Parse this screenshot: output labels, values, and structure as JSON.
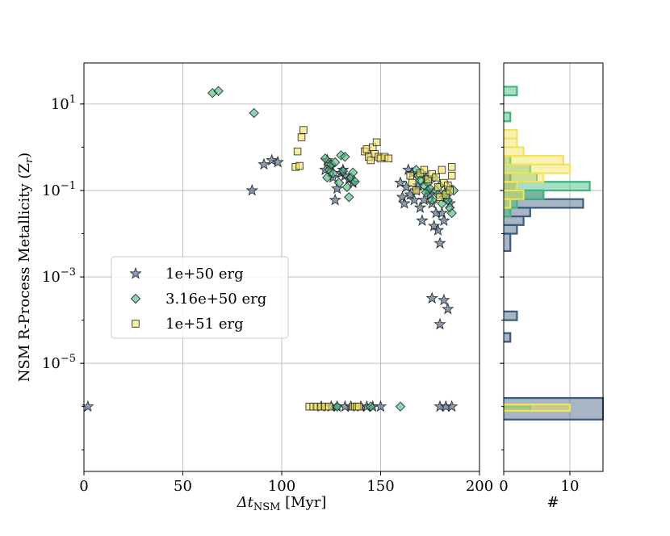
{
  "chart_data": [
    {
      "type": "scatter",
      "xlabel_main": "Δt",
      "xlabel_sub": "NSM",
      "xlabel_unit": " [Myr]",
      "ylabel_main": "NSM R-Process Metallicity (Z",
      "ylabel_sub": "r",
      "ylabel_end": ")",
      "xlim": [
        0,
        200
      ],
      "ylim_log10": [
        -7.5,
        1.95
      ],
      "yscale": "log",
      "grid": true,
      "legend_position": "center-left",
      "x_ticks": [
        0,
        50,
        100,
        150,
        200
      ],
      "y_ticks": [
        {
          "exp": 1,
          "label": "10",
          "sup": "1"
        },
        {
          "exp": -1,
          "label": "10",
          "sup": "−1"
        },
        {
          "exp": -3,
          "label": "10",
          "sup": "−3"
        },
        {
          "exp": -5,
          "label": "10",
          "sup": "−5"
        }
      ],
      "series": [
        {
          "name": "1e+50 erg",
          "marker": "star",
          "color": "#3b5b7e",
          "points": [
            [
              2,
              1e-06
            ],
            [
              85,
              0.1
            ],
            [
              91,
              0.4
            ],
            [
              95,
              0.5
            ],
            [
              98,
              0.45
            ],
            [
              122,
              0.3
            ],
            [
              123,
              0.5
            ],
            [
              125,
              0.35
            ],
            [
              126,
              0.2
            ],
            [
              127,
              0.06
            ],
            [
              128,
              0.11
            ],
            [
              130,
              0.25
            ],
            [
              131,
              0.3
            ],
            [
              132,
              0.22
            ],
            [
              134,
              0.18
            ],
            [
              136,
              0.15
            ],
            [
              120,
              1e-06
            ],
            [
              125,
              1e-06
            ],
            [
              128,
              1e-06
            ],
            [
              132,
              1e-06
            ],
            [
              135,
              1e-06
            ],
            [
              140,
              1e-06
            ],
            [
              143,
              1e-06
            ],
            [
              146,
              1e-06
            ],
            [
              150,
              1e-06
            ],
            [
              160,
              0.15
            ],
            [
              161,
              0.07
            ],
            [
              162,
              0.05
            ],
            [
              163,
              0.12
            ],
            [
              164,
              0.3
            ],
            [
              165,
              0.08
            ],
            [
              166,
              0.25
            ],
            [
              167,
              0.06
            ],
            [
              168,
              0.1
            ],
            [
              169,
              0.13
            ],
            [
              170,
              0.04
            ],
            [
              171,
              0.02
            ],
            [
              172,
              0.06
            ],
            [
              173,
              0.2
            ],
            [
              174,
              0.1
            ],
            [
              175,
              0.08
            ],
            [
              176,
              0.05
            ],
            [
              177,
              0.015
            ],
            [
              178,
              0.03
            ],
            [
              179,
              0.012
            ],
            [
              180,
              0.006
            ],
            [
              181,
              0.03
            ],
            [
              182,
              0.02
            ],
            [
              183,
              0.07
            ],
            [
              184,
              0.12
            ],
            [
              185,
              0.05
            ],
            [
              176,
              0.00032
            ],
            [
              180,
              8e-05
            ],
            [
              182,
              0.00029
            ],
            [
              184,
              0.00018
            ],
            [
              180,
              1e-06
            ],
            [
              183,
              1e-06
            ],
            [
              186,
              1e-06
            ]
          ]
        },
        {
          "name": "3.16e+50 erg",
          "marker": "diamond",
          "color": "#3fb57a",
          "points": [
            [
              65,
              18
            ],
            [
              68,
              20
            ],
            [
              86,
              6.2
            ],
            [
              122,
              0.55
            ],
            [
              123,
              0.2
            ],
            [
              124,
              0.3
            ],
            [
              125,
              0.4
            ],
            [
              126,
              0.25
            ],
            [
              127,
              0.45
            ],
            [
              129,
              0.15
            ],
            [
              130,
              0.65
            ],
            [
              131,
              0.28
            ],
            [
              132,
              0.6
            ],
            [
              133,
              0.12
            ],
            [
              134,
              0.07
            ],
            [
              135,
              0.2
            ],
            [
              136,
              0.26
            ],
            [
              137,
              0.16
            ],
            [
              168,
              0.3
            ],
            [
              169,
              0.22
            ],
            [
              170,
              0.17
            ],
            [
              171,
              0.25
            ],
            [
              172,
              0.13
            ],
            [
              173,
              0.09
            ],
            [
              174,
              0.15
            ],
            [
              175,
              0.11
            ],
            [
              176,
              0.06
            ],
            [
              177,
              0.2
            ],
            [
              178,
              0.1
            ],
            [
              179,
              0.08
            ],
            [
              180,
              0.13
            ],
            [
              181,
              0.05
            ],
            [
              182,
              0.07
            ],
            [
              183,
              0.09
            ],
            [
              184,
              0.06
            ],
            [
              185,
              0.04
            ],
            [
              186,
              0.03
            ],
            [
              187,
              0.1
            ],
            [
              128,
              1e-06
            ],
            [
              145,
              1e-06
            ],
            [
              160,
              1e-06
            ]
          ]
        },
        {
          "name": "1e+51 erg",
          "marker": "square",
          "color": "#f2e35a",
          "points": [
            [
              107,
              0.35
            ],
            [
              108,
              0.8
            ],
            [
              109,
              0.37
            ],
            [
              110,
              1.7
            ],
            [
              111,
              2.5
            ],
            [
              142,
              0.8
            ],
            [
              143,
              0.9
            ],
            [
              144,
              0.6
            ],
            [
              145,
              0.5
            ],
            [
              146,
              1.0
            ],
            [
              147,
              0.7
            ],
            [
              148,
              1.3
            ],
            [
              149,
              0.6
            ],
            [
              150,
              0.55
            ],
            [
              152,
              0.6
            ],
            [
              154,
              0.55
            ],
            [
              165,
              0.22
            ],
            [
              166,
              0.15
            ],
            [
              168,
              0.1
            ],
            [
              170,
              0.25
            ],
            [
              172,
              0.3
            ],
            [
              174,
              0.18
            ],
            [
              176,
              0.24
            ],
            [
              178,
              0.2
            ],
            [
              179,
              0.12
            ],
            [
              180,
              0.07
            ],
            [
              181,
              0.3
            ],
            [
              182,
              0.15
            ],
            [
              183,
              0.08
            ],
            [
              184,
              0.13
            ],
            [
              185,
              0.1
            ],
            [
              186,
              0.35
            ],
            [
              186,
              0.22
            ],
            [
              114,
              1e-06
            ],
            [
              116,
              1e-06
            ],
            [
              118,
              1e-06
            ],
            [
              120,
              1e-06
            ],
            [
              122,
              1e-06
            ],
            [
              124,
              1e-06
            ],
            [
              136,
              1e-06
            ],
            [
              137,
              1e-06
            ],
            [
              138,
              1e-06
            ],
            [
              139,
              1e-06
            ]
          ]
        }
      ]
    },
    {
      "type": "histogram",
      "orientation": "horizontal",
      "xlabel": "#",
      "xlim": [
        0,
        15
      ],
      "x_ticks": [
        0,
        10
      ],
      "grid": true,
      "series": [
        {
          "name": "1e+50 erg",
          "color": "#3b5b7e",
          "bins": [
            {
              "lo": -6.3,
              "hi": -5.8,
              "count": 15
            },
            {
              "lo": -4.5,
              "hi": -4.3,
              "count": 1
            },
            {
              "lo": -4.0,
              "hi": -3.8,
              "count": 2
            },
            {
              "lo": -2.4,
              "hi": -2.0,
              "count": 1
            },
            {
              "lo": -2.0,
              "hi": -1.8,
              "count": 2
            },
            {
              "lo": -1.8,
              "hi": -1.6,
              "count": 3
            },
            {
              "lo": -1.6,
              "hi": -1.4,
              "count": 4
            },
            {
              "lo": -1.4,
              "hi": -1.2,
              "count": 12
            },
            {
              "lo": -1.2,
              "hi": -1.0,
              "count": 6
            },
            {
              "lo": -1.0,
              "hi": -0.8,
              "count": 2
            },
            {
              "lo": -0.8,
              "hi": -0.6,
              "count": 1
            }
          ]
        },
        {
          "name": "3.16e+50 erg",
          "color": "#3fb57a",
          "bins": [
            {
              "lo": -6.1,
              "hi": -6.0,
              "count": 4
            },
            {
              "lo": -1.6,
              "hi": -1.4,
              "count": 1
            },
            {
              "lo": -1.4,
              "hi": -1.2,
              "count": 2
            },
            {
              "lo": -1.2,
              "hi": -1.0,
              "count": 6
            },
            {
              "lo": -1.0,
              "hi": -0.8,
              "count": 13
            },
            {
              "lo": -0.8,
              "hi": -0.6,
              "count": 5
            },
            {
              "lo": -0.6,
              "hi": -0.4,
              "count": 4
            },
            {
              "lo": -0.4,
              "hi": -0.2,
              "count": 1
            },
            {
              "lo": 0.6,
              "hi": 0.8,
              "count": 1
            },
            {
              "lo": 1.2,
              "hi": 1.4,
              "count": 2
            }
          ]
        },
        {
          "name": "1e+51 erg",
          "color": "#f2e35a",
          "bins": [
            {
              "lo": -6.1,
              "hi": -5.95,
              "count": 10
            },
            {
              "lo": -1.4,
              "hi": -1.2,
              "count": 1
            },
            {
              "lo": -1.2,
              "hi": -1.0,
              "count": 3
            },
            {
              "lo": -1.0,
              "hi": -0.8,
              "count": 2
            },
            {
              "lo": -0.8,
              "hi": -0.6,
              "count": 6
            },
            {
              "lo": -0.6,
              "hi": -0.4,
              "count": 10
            },
            {
              "lo": -0.4,
              "hi": -0.2,
              "count": 9
            },
            {
              "lo": -0.2,
              "hi": 0.0,
              "count": 3
            },
            {
              "lo": 0.0,
              "hi": 0.2,
              "count": 2
            },
            {
              "lo": 0.2,
              "hi": 0.4,
              "count": 2
            }
          ]
        }
      ]
    }
  ]
}
